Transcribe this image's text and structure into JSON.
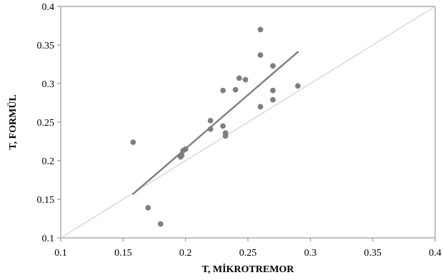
{
  "chart_data": {
    "type": "scatter",
    "title": "",
    "xlabel": "T,  MİKROTREMOR",
    "ylabel": "T, FORMÜL",
    "xlim": [
      0.1,
      0.4
    ],
    "ylim": [
      0.1,
      0.4
    ],
    "x_ticks": [
      "0.1",
      "0.15",
      "0.2",
      "0.25",
      "0.3",
      "0.35",
      "0.4"
    ],
    "y_ticks": [
      "0.1",
      "0.15",
      "0.2",
      "0.25",
      "0.3",
      "0.35",
      "0.4"
    ],
    "grid": false,
    "legend": "none",
    "points": [
      {
        "x": 0.158,
        "y": 0.224
      },
      {
        "x": 0.17,
        "y": 0.139
      },
      {
        "x": 0.18,
        "y": 0.118
      },
      {
        "x": 0.196,
        "y": 0.205
      },
      {
        "x": 0.197,
        "y": 0.207
      },
      {
        "x": 0.198,
        "y": 0.213
      },
      {
        "x": 0.2,
        "y": 0.215
      },
      {
        "x": 0.22,
        "y": 0.241
      },
      {
        "x": 0.22,
        "y": 0.252
      },
      {
        "x": 0.23,
        "y": 0.245
      },
      {
        "x": 0.23,
        "y": 0.291
      },
      {
        "x": 0.232,
        "y": 0.232
      },
      {
        "x": 0.232,
        "y": 0.236
      },
      {
        "x": 0.24,
        "y": 0.292
      },
      {
        "x": 0.243,
        "y": 0.307
      },
      {
        "x": 0.248,
        "y": 0.305
      },
      {
        "x": 0.26,
        "y": 0.27
      },
      {
        "x": 0.26,
        "y": 0.337
      },
      {
        "x": 0.26,
        "y": 0.37
      },
      {
        "x": 0.27,
        "y": 0.279
      },
      {
        "x": 0.27,
        "y": 0.291
      },
      {
        "x": 0.27,
        "y": 0.323
      },
      {
        "x": 0.29,
        "y": 0.297
      }
    ],
    "trendline": {
      "x": [
        0.158,
        0.29
      ],
      "y": [
        0.157,
        0.341
      ]
    },
    "reference_line": {
      "x": [
        0.1,
        0.4
      ],
      "y": [
        0.1,
        0.4
      ]
    },
    "colors": {
      "points": "#7f7f7f",
      "trendline": "#7f7f7f",
      "reference_line": "#d9d9d9",
      "axis": "#868686",
      "frame": "#868686"
    }
  }
}
